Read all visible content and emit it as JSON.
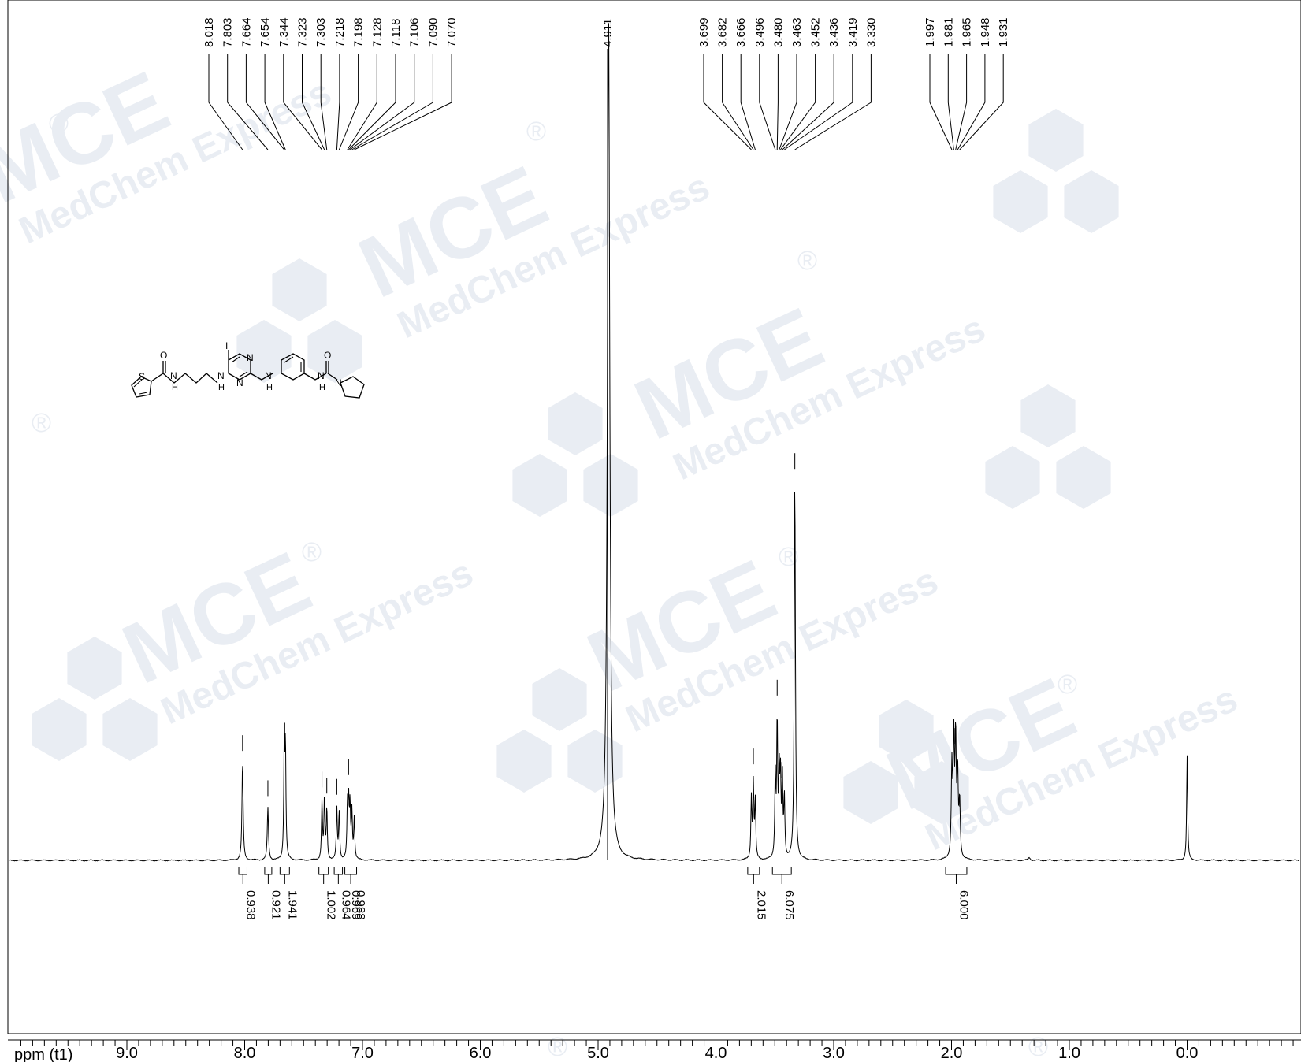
{
  "chart_data": {
    "type": "line",
    "title": "",
    "xlabel": "ppm (t1)",
    "ylabel": "",
    "xlim": [
      9.9,
      -0.4
    ],
    "x_axis_reversed": true,
    "x_ticks": [
      9.0,
      8.0,
      7.0,
      6.0,
      5.0,
      4.0,
      3.0,
      2.0,
      1.0,
      0.0
    ],
    "x_tick_labels": [
      "9.0",
      "8.0",
      "7.0",
      "6.0",
      "5.0",
      "4.0",
      "3.0",
      "2.0",
      "1.0",
      "0.0"
    ],
    "grid": false,
    "peak_groups": [
      {
        "labels": [
          "8.018",
          "7.803",
          "7.664",
          "7.654",
          "7.344",
          "7.323",
          "7.303",
          "7.218",
          "7.198",
          "7.128",
          "7.118",
          "7.106",
          "7.090",
          "7.070"
        ],
        "ppm": [
          8.018,
          7.803,
          7.664,
          7.654,
          7.344,
          7.323,
          7.303,
          7.218,
          7.198,
          7.128,
          7.118,
          7.106,
          7.09,
          7.07
        ]
      },
      {
        "labels": [
          "4.911"
        ],
        "ppm": [
          4.911
        ]
      },
      {
        "labels": [
          "3.699",
          "3.682",
          "3.666",
          "3.496",
          "3.480",
          "3.463",
          "3.452",
          "3.436",
          "3.419",
          "3.330"
        ],
        "ppm": [
          3.699,
          3.682,
          3.666,
          3.496,
          3.48,
          3.463,
          3.452,
          3.436,
          3.419,
          3.33
        ]
      },
      {
        "labels": [
          "1.997",
          "1.981",
          "1.965",
          "1.948",
          "1.931"
        ],
        "ppm": [
          1.997,
          1.981,
          1.965,
          1.948,
          1.931
        ]
      }
    ],
    "spectrum_peaks": [
      {
        "ppm": 8.018,
        "height": 0.145,
        "width": 0.006
      },
      {
        "ppm": 7.803,
        "height": 0.078,
        "width": 0.006
      },
      {
        "ppm": 7.664,
        "height": 0.16,
        "width": 0.005
      },
      {
        "ppm": 7.654,
        "height": 0.16,
        "width": 0.005
      },
      {
        "ppm": 7.344,
        "height": 0.085,
        "width": 0.005
      },
      {
        "ppm": 7.323,
        "height": 0.09,
        "width": 0.005
      },
      {
        "ppm": 7.303,
        "height": 0.075,
        "width": 0.005
      },
      {
        "ppm": 7.218,
        "height": 0.075,
        "width": 0.005
      },
      {
        "ppm": 7.198,
        "height": 0.07,
        "width": 0.005
      },
      {
        "ppm": 7.128,
        "height": 0.075,
        "width": 0.005
      },
      {
        "ppm": 7.118,
        "height": 0.08,
        "width": 0.005
      },
      {
        "ppm": 7.106,
        "height": 0.075,
        "width": 0.005
      },
      {
        "ppm": 7.09,
        "height": 0.07,
        "width": 0.005
      },
      {
        "ppm": 7.07,
        "height": 0.06,
        "width": 0.005
      },
      {
        "ppm": 4.911,
        "height": 1.25,
        "width": 0.012
      },
      {
        "ppm": 3.699,
        "height": 0.09,
        "width": 0.005
      },
      {
        "ppm": 3.682,
        "height": 0.11,
        "width": 0.005
      },
      {
        "ppm": 3.666,
        "height": 0.085,
        "width": 0.005
      },
      {
        "ppm": 3.496,
        "height": 0.12,
        "width": 0.005
      },
      {
        "ppm": 3.48,
        "height": 0.2,
        "width": 0.005
      },
      {
        "ppm": 3.463,
        "height": 0.12,
        "width": 0.005
      },
      {
        "ppm": 3.452,
        "height": 0.11,
        "width": 0.005
      },
      {
        "ppm": 3.436,
        "height": 0.12,
        "width": 0.005
      },
      {
        "ppm": 3.419,
        "height": 0.09,
        "width": 0.005
      },
      {
        "ppm": 3.33,
        "height": 0.56,
        "width": 0.006
      },
      {
        "ppm": 1.997,
        "height": 0.13,
        "width": 0.006
      },
      {
        "ppm": 1.981,
        "height": 0.17,
        "width": 0.006
      },
      {
        "ppm": 1.965,
        "height": 0.17,
        "width": 0.006
      },
      {
        "ppm": 1.948,
        "height": 0.12,
        "width": 0.006
      },
      {
        "ppm": 1.931,
        "height": 0.08,
        "width": 0.006
      },
      {
        "ppm": 1.34,
        "height": 0.004,
        "width": 0.01
      },
      {
        "ppm": 0.0,
        "height": 0.155,
        "width": 0.005
      }
    ],
    "integrals": [
      {
        "from": 8.05,
        "to": 7.98,
        "value": "0.938"
      },
      {
        "from": 7.83,
        "to": 7.77,
        "value": "0.921"
      },
      {
        "from": 7.7,
        "to": 7.62,
        "value": "1.941"
      },
      {
        "from": 7.37,
        "to": 7.29,
        "value": "1.002"
      },
      {
        "from": 7.24,
        "to": 7.17,
        "value": "0.964"
      },
      {
        "from": 7.15,
        "to": 7.05,
        "values": [
          "0.969",
          "0.988"
        ]
      },
      {
        "from": 3.73,
        "to": 3.63,
        "value": "2.015"
      },
      {
        "from": 3.52,
        "to": 3.36,
        "value": "6.075"
      },
      {
        "from": 2.05,
        "to": 1.87,
        "value": "6.000"
      }
    ]
  },
  "structure": {
    "atom_labels": {
      "I": "I",
      "O1": "O",
      "O2": "O",
      "S": "S",
      "N_pyr1": "N",
      "N_pyr2": "N",
      "N_pyrrolidine": "N"
    },
    "nh_labels": [
      "N",
      "H",
      "N",
      "H",
      "N",
      "H",
      "N",
      "H"
    ]
  },
  "watermark": {
    "brand": "MCE",
    "brand_sub": "MedChem Express",
    "registered": "®",
    "color": "#e9edf3"
  }
}
